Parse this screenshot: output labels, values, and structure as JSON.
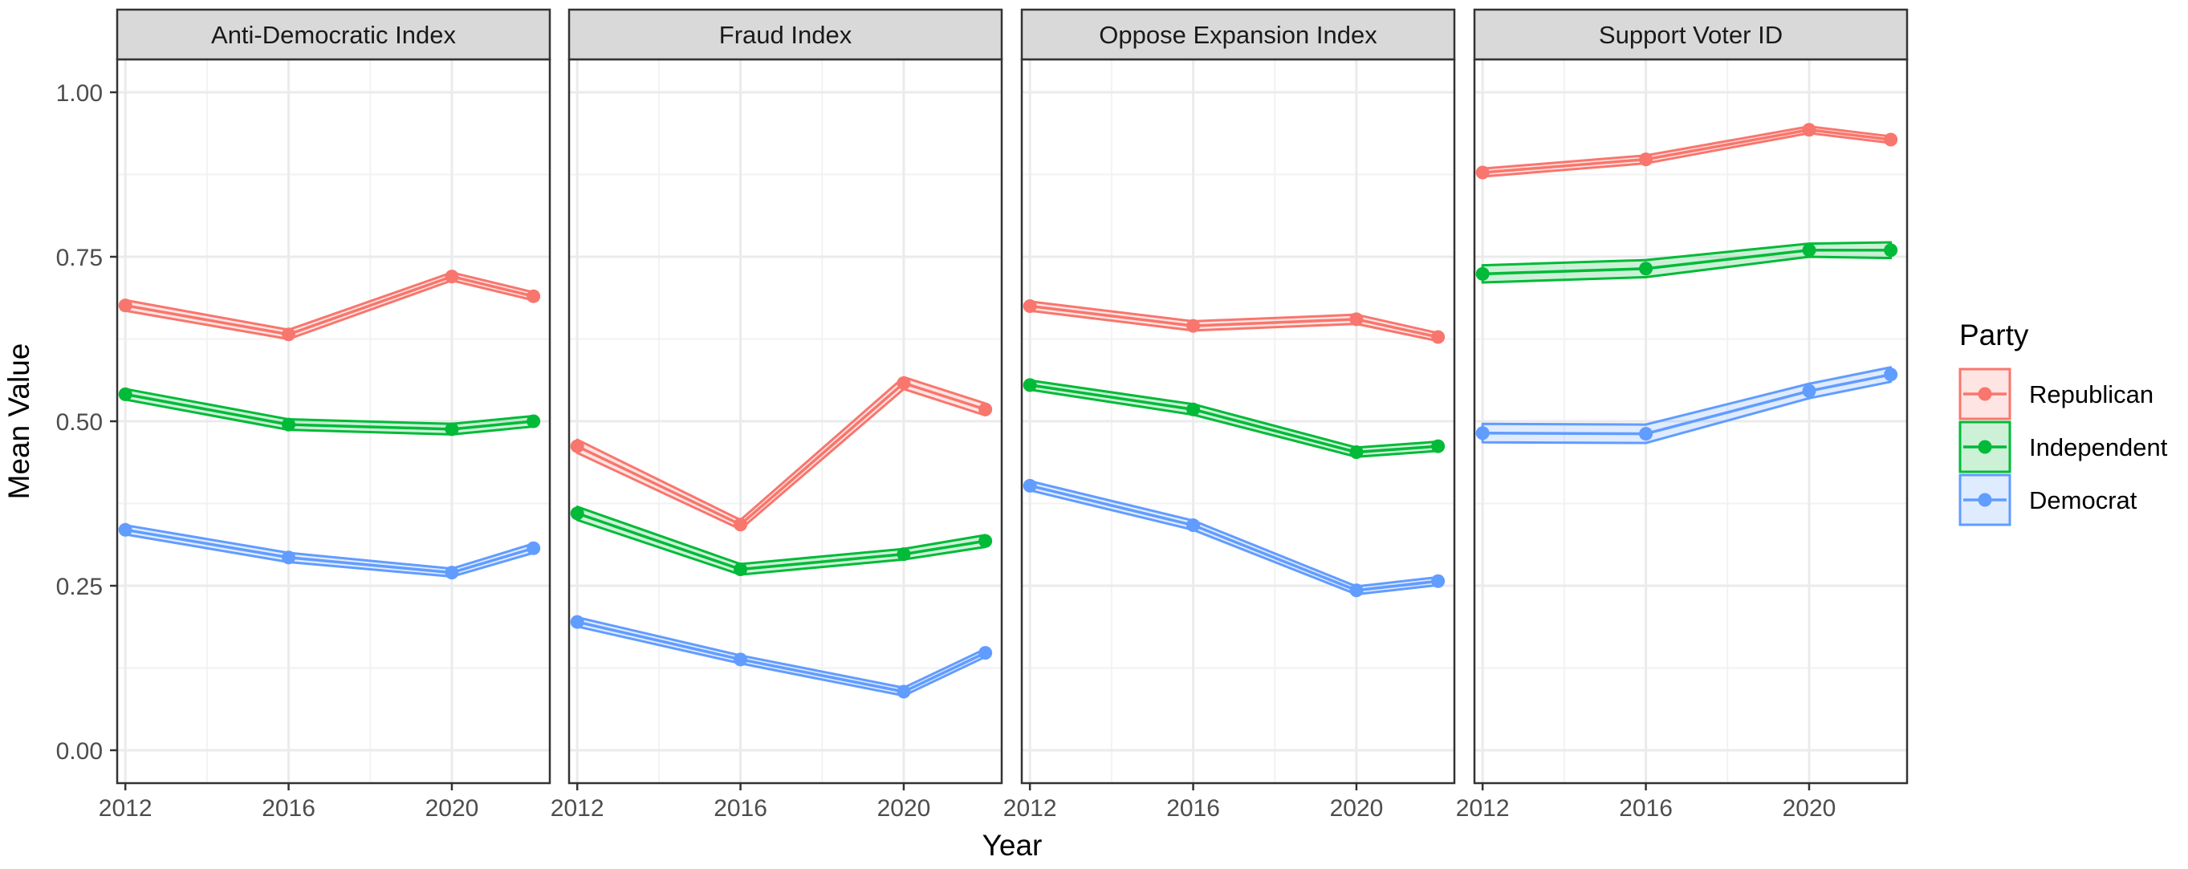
{
  "chart_data": {
    "type": "line",
    "xlabel": "Year",
    "ylabel": "Mean Value",
    "x": [
      2012,
      2016,
      2020,
      2022
    ],
    "x_ticks": [
      2012,
      2016,
      2020
    ],
    "x_tick_labels": [
      "2012",
      "2016",
      "2020"
    ],
    "xlim": [
      2011.8,
      2022.4
    ],
    "y_ticks": [
      0,
      0.25,
      0.5,
      0.75,
      1.0
    ],
    "y_tick_labels": [
      "0.00",
      "0.25",
      "0.50",
      "0.75",
      "1.00"
    ],
    "ylim": [
      -0.05,
      1.05
    ],
    "grid": true,
    "legend": {
      "title": "Party",
      "position": "right",
      "entries": [
        "Republican",
        "Independent",
        "Democrat"
      ]
    },
    "colors": {
      "Republican": "#F8766D",
      "Independent": "#00BA38",
      "Democrat": "#619CFF",
      "strip_fill": "#D9D9D9",
      "grid": "#EBEBEB",
      "axis_text": "#4D4D4D"
    },
    "panels": [
      {
        "title": "Anti-Democratic Index",
        "series": [
          {
            "name": "Republican",
            "values": [
              0.676,
              0.632,
              0.72,
              0.69
            ],
            "lower": [
              0.668,
              0.625,
              0.714,
              0.684
            ],
            "upper": [
              0.684,
              0.639,
              0.726,
              0.696
            ]
          },
          {
            "name": "Independent",
            "values": [
              0.541,
              0.495,
              0.488,
              0.5
            ],
            "lower": [
              0.533,
              0.487,
              0.48,
              0.492
            ],
            "upper": [
              0.549,
              0.503,
              0.496,
              0.508
            ]
          },
          {
            "name": "Democrat",
            "values": [
              0.335,
              0.293,
              0.27,
              0.307
            ],
            "lower": [
              0.328,
              0.286,
              0.264,
              0.3
            ],
            "upper": [
              0.342,
              0.3,
              0.276,
              0.314
            ]
          }
        ]
      },
      {
        "title": "Fraud Index",
        "series": [
          {
            "name": "Republican",
            "values": [
              0.462,
              0.343,
              0.558,
              0.518
            ],
            "lower": [
              0.452,
              0.336,
              0.549,
              0.509
            ],
            "upper": [
              0.472,
              0.35,
              0.567,
              0.527
            ]
          },
          {
            "name": "Independent",
            "values": [
              0.36,
              0.275,
              0.298,
              0.318
            ],
            "lower": [
              0.35,
              0.267,
              0.29,
              0.309
            ],
            "upper": [
              0.37,
              0.283,
              0.306,
              0.327
            ]
          },
          {
            "name": "Democrat",
            "values": [
              0.195,
              0.138,
              0.089,
              0.148
            ],
            "lower": [
              0.188,
              0.132,
              0.083,
              0.142
            ],
            "upper": [
              0.202,
              0.144,
              0.095,
              0.154
            ]
          }
        ]
      },
      {
        "title": "Oppose Expansion Index",
        "series": [
          {
            "name": "Republican",
            "values": [
              0.675,
              0.645,
              0.655,
              0.628
            ],
            "lower": [
              0.668,
              0.638,
              0.648,
              0.622
            ],
            "upper": [
              0.682,
              0.652,
              0.662,
              0.634
            ]
          },
          {
            "name": "Independent",
            "values": [
              0.555,
              0.518,
              0.453,
              0.462
            ],
            "lower": [
              0.548,
              0.51,
              0.446,
              0.455
            ],
            "upper": [
              0.562,
              0.526,
              0.46,
              0.469
            ]
          },
          {
            "name": "Democrat",
            "values": [
              0.402,
              0.342,
              0.243,
              0.257
            ],
            "lower": [
              0.395,
              0.335,
              0.237,
              0.251
            ],
            "upper": [
              0.409,
              0.349,
              0.249,
              0.263
            ]
          }
        ]
      },
      {
        "title": "Support Voter ID",
        "series": [
          {
            "name": "Republican",
            "values": [
              0.878,
              0.898,
              0.943,
              0.928
            ],
            "lower": [
              0.872,
              0.892,
              0.938,
              0.923
            ],
            "upper": [
              0.884,
              0.904,
              0.948,
              0.933
            ]
          },
          {
            "name": "Independent",
            "values": [
              0.724,
              0.732,
              0.76,
              0.76
            ],
            "lower": [
              0.711,
              0.719,
              0.75,
              0.748
            ],
            "upper": [
              0.737,
              0.745,
              0.77,
              0.772
            ]
          },
          {
            "name": "Democrat",
            "values": [
              0.482,
              0.481,
              0.546,
              0.571
            ],
            "lower": [
              0.468,
              0.467,
              0.535,
              0.56
            ],
            "upper": [
              0.496,
              0.495,
              0.557,
              0.582
            ]
          }
        ]
      }
    ]
  }
}
